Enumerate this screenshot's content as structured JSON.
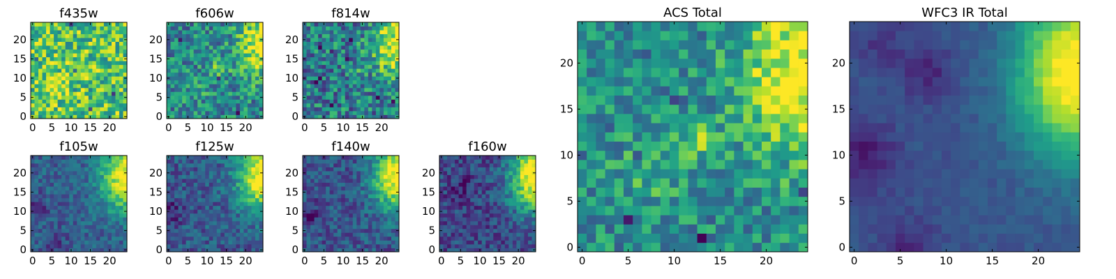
{
  "chart_data": {
    "type": "heatmap",
    "colormap": "viridis",
    "grid_size": 25,
    "panels": [
      {
        "id": "f435w",
        "title": "f435w",
        "xticks": [
          0,
          5,
          10,
          15,
          20
        ],
        "yticks": [
          0,
          5,
          10,
          15,
          20
        ],
        "xlim": [
          0,
          24
        ],
        "ylim": [
          0,
          24
        ],
        "base": 0.72,
        "noise": 0.28,
        "bright": 0.0,
        "dark": [],
        "blobs": [
          {
            "x": 7,
            "y": 9,
            "a": 0.08,
            "s": 4
          }
        ]
      },
      {
        "id": "f606w",
        "title": "f606w",
        "xticks": [
          0,
          5,
          10,
          15,
          20
        ],
        "yticks": [
          0,
          5,
          10,
          15,
          20
        ],
        "xlim": [
          0,
          24
        ],
        "ylim": [
          0,
          24
        ],
        "base": 0.45,
        "noise": 0.25,
        "bright": 0.5,
        "dark": [],
        "blobs": [
          {
            "x": 13,
            "y": 12,
            "a": 0.3,
            "s": 1.5
          },
          {
            "x": 7,
            "y": 8,
            "a": 0.12,
            "s": 3
          }
        ]
      },
      {
        "id": "f814w",
        "title": "f814w",
        "xticks": [
          0,
          5,
          10,
          15,
          20
        ],
        "yticks": [
          0,
          5,
          10,
          15,
          20
        ],
        "xlim": [
          0,
          24
        ],
        "ylim": [
          0,
          24
        ],
        "base": 0.42,
        "noise": 0.28,
        "bright": 0.55,
        "dark": [],
        "blobs": [
          {
            "x": 13,
            "y": 12,
            "a": 0.18,
            "s": 1.5
          }
        ]
      },
      {
        "id": "f105w",
        "title": "f105w",
        "xticks": [
          0,
          5,
          10,
          15,
          20
        ],
        "yticks": [
          0,
          5,
          10,
          15,
          20
        ],
        "xlim": [
          0,
          24
        ],
        "ylim": [
          0,
          24
        ],
        "base": 0.3,
        "noise": 0.14,
        "bright": 0.7,
        "dark": [
          {
            "x": 1,
            "y": 11,
            "a": 0.2,
            "s": 2
          },
          {
            "x": 6,
            "y": 2,
            "a": 0.15,
            "s": 2
          }
        ],
        "blobs": []
      },
      {
        "id": "f125w",
        "title": "f125w",
        "xticks": [
          0,
          5,
          10,
          15,
          20
        ],
        "yticks": [
          0,
          5,
          10,
          15,
          20
        ],
        "xlim": [
          0,
          24
        ],
        "ylim": [
          0,
          24
        ],
        "base": 0.28,
        "noise": 0.16,
        "bright": 0.72,
        "dark": [
          {
            "x": 1,
            "y": 10,
            "a": 0.2,
            "s": 2
          }
        ],
        "blobs": []
      },
      {
        "id": "f140w",
        "title": "f140w",
        "xticks": [
          0,
          5,
          10,
          15,
          20
        ],
        "yticks": [
          0,
          5,
          10,
          15,
          20
        ],
        "xlim": [
          0,
          24
        ],
        "ylim": [
          0,
          24
        ],
        "base": 0.26,
        "noise": 0.16,
        "bright": 0.75,
        "dark": [
          {
            "x": 1,
            "y": 9,
            "a": 0.2,
            "s": 2
          }
        ],
        "blobs": []
      },
      {
        "id": "f160w",
        "title": "f160w",
        "xticks": [
          0,
          5,
          10,
          15,
          20
        ],
        "yticks": [
          0,
          5,
          10,
          15,
          20
        ],
        "xlim": [
          0,
          24
        ],
        "ylim": [
          0,
          24
        ],
        "base": 0.22,
        "noise": 0.16,
        "bright": 0.8,
        "dark": [
          {
            "x": 5,
            "y": 16,
            "a": 0.15,
            "s": 2
          }
        ],
        "blobs": []
      },
      {
        "id": "acs_total",
        "title": "ACS Total",
        "xticks": [
          0,
          5,
          10,
          15,
          20
        ],
        "yticks": [
          0,
          5,
          10,
          15,
          20
        ],
        "xlim": [
          0,
          24
        ],
        "ylim": [
          0,
          24
        ],
        "base": 0.48,
        "noise": 0.22,
        "bright": 0.55,
        "dark": [],
        "blobs": [
          {
            "x": 13,
            "y": 12,
            "a": 0.32,
            "s": 1.3
          },
          {
            "x": 8,
            "y": 8,
            "a": 0.15,
            "s": 3
          }
        ]
      },
      {
        "id": "wfc3_ir_total",
        "title": "WFC3 IR Total",
        "xticks": [
          0,
          5,
          10,
          15,
          20
        ],
        "yticks": [
          0,
          5,
          10,
          15,
          20
        ],
        "xlim": [
          0,
          24
        ],
        "ylim": [
          0,
          24
        ],
        "base": 0.26,
        "noise": 0.08,
        "bright": 0.8,
        "dark": [
          {
            "x": 1,
            "y": 10,
            "a": 0.18,
            "s": 2.5
          },
          {
            "x": 8,
            "y": 19,
            "a": 0.15,
            "s": 2
          },
          {
            "x": 3,
            "y": 22,
            "a": 0.1,
            "s": 2
          },
          {
            "x": 6,
            "y": 0,
            "a": 0.15,
            "s": 2
          }
        ],
        "blobs": []
      }
    ]
  }
}
